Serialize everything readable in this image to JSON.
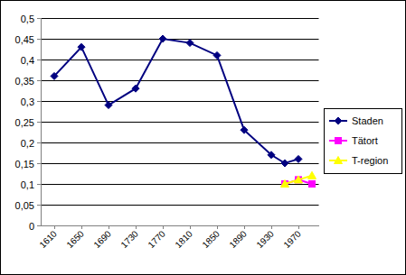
{
  "chart_data": {
    "type": "line",
    "x": [
      1610,
      1650,
      1690,
      1730,
      1770,
      1810,
      1850,
      1890,
      1930,
      1950,
      1970,
      1990
    ],
    "series": [
      {
        "name": "Staden",
        "color": "#000080",
        "marker": "diamond",
        "values": [
          0.36,
          0.43,
          0.29,
          0.33,
          0.45,
          0.44,
          0.41,
          0.23,
          0.17,
          0.15,
          0.16,
          null
        ]
      },
      {
        "name": "Tätort",
        "color": "#ff00ff",
        "marker": "square",
        "values": [
          null,
          null,
          null,
          null,
          null,
          null,
          null,
          null,
          null,
          0.1,
          0.11,
          0.1
        ]
      },
      {
        "name": "T-region",
        "color": "#ffff00",
        "marker": "triangle",
        "values": [
          null,
          null,
          null,
          null,
          null,
          null,
          null,
          null,
          null,
          0.1,
          0.11,
          0.12
        ]
      }
    ],
    "xlim": [
      1590,
      2000
    ],
    "xticks": [
      1610,
      1650,
      1690,
      1730,
      1770,
      1810,
      1850,
      1890,
      1930,
      1970
    ],
    "ylim": [
      0,
      0.5
    ],
    "yticks": [
      0,
      {
        "value": 0.05,
        "label": "0,05"
      },
      {
        "value": 0.1,
        "label": "0,1"
      },
      {
        "value": 0.15,
        "label": "0,15"
      },
      {
        "value": 0.2,
        "label": "0,2"
      },
      {
        "value": 0.25,
        "label": "0,25"
      },
      {
        "value": 0.3,
        "label": "0,3"
      },
      {
        "value": 0.35,
        "label": "0,35"
      },
      {
        "value": 0.4,
        "label": "0,4"
      },
      {
        "value": 0.45,
        "label": "0,45"
      },
      {
        "value": 0.5,
        "label": "0,5"
      }
    ],
    "grid": true,
    "legend": "right"
  }
}
